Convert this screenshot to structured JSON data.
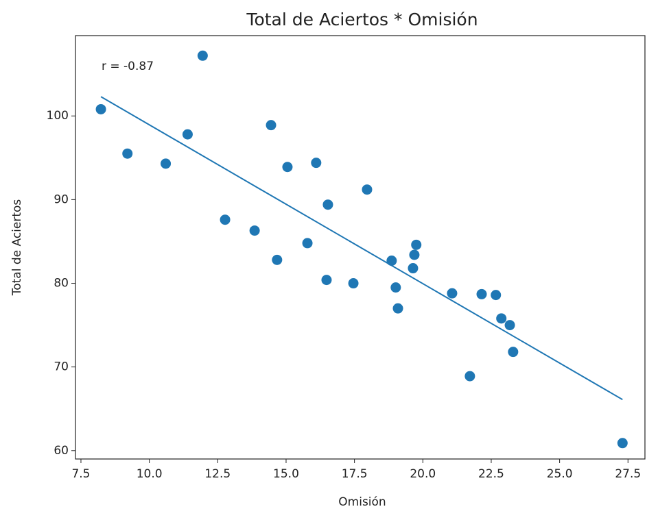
{
  "chart_data": {
    "type": "scatter",
    "title": "Total de Aciertos * Omisión",
    "x_label": "Omisión",
    "y_label": "Total de Aciertos",
    "annotation": "r = -0.87",
    "color": "#1f77b4",
    "x": [
      8.23,
      9.2,
      10.6,
      11.4,
      11.95,
      12.77,
      13.85,
      14.45,
      14.67,
      15.05,
      15.78,
      16.1,
      16.48,
      16.53,
      17.46,
      17.96,
      18.86,
      19.01,
      19.09,
      19.64,
      19.69,
      19.76,
      21.07,
      21.72,
      22.15,
      22.67,
      22.87,
      23.18,
      23.3,
      27.3
    ],
    "y": [
      100.8,
      95.5,
      94.3,
      97.8,
      107.2,
      87.6,
      86.3,
      98.9,
      82.8,
      93.9,
      84.8,
      94.4,
      80.4,
      89.4,
      80.0,
      91.2,
      82.7,
      79.5,
      77.0,
      81.8,
      83.4,
      84.6,
      78.8,
      68.9,
      78.7,
      78.6,
      75.8,
      75.0,
      71.8,
      60.9
    ],
    "fit": {
      "x": [
        8.23,
        27.3
      ],
      "y": [
        102.3,
        66.1
      ]
    },
    "xlim": [
      7.3,
      28.12
    ],
    "ylim": [
      59.0,
      109.6
    ],
    "xticks": [
      7.5,
      {
        "value": 10,
        "label": "10.0"
      },
      12.5,
      {
        "value": 15,
        "label": "15.0"
      },
      17.5,
      {
        "value": 20,
        "label": "20.0"
      },
      22.5,
      {
        "value": 25,
        "label": "25.0"
      },
      27.5
    ],
    "yticks": [
      60,
      70,
      80,
      90,
      100
    ]
  }
}
